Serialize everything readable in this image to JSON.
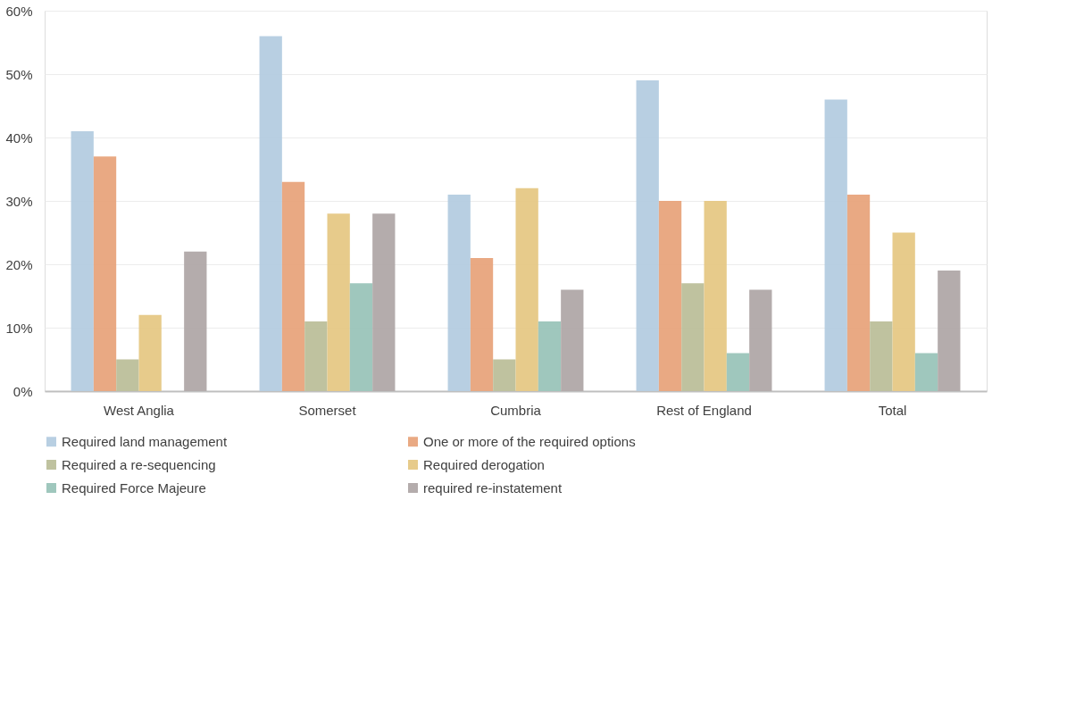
{
  "chart_data": {
    "type": "bar",
    "categories": [
      "West  Anglia",
      "Somerset",
      "Cumbria",
      "Rest  of England",
      "Total"
    ],
    "series": [
      {
        "name": "Required land management",
        "color": "#b4cce0",
        "values": [
          41,
          56,
          31,
          49,
          46
        ]
      },
      {
        "name": "One or more of the required options",
        "color": "#e8a47c",
        "values": [
          37,
          33,
          21,
          30,
          31
        ]
      },
      {
        "name": "Required a re-sequencing",
        "color": "#bcbf9a",
        "values": [
          5,
          11,
          5,
          17,
          11
        ]
      },
      {
        "name": "Required derogation",
        "color": "#e6c885",
        "values": [
          12,
          28,
          32,
          30,
          25
        ]
      },
      {
        "name": "Required Force Majeure",
        "color": "#9ac4b9",
        "values": [
          null,
          17,
          11,
          6,
          6
        ]
      },
      {
        "name": "required re-instatement",
        "color": "#b0a8a8",
        "values": [
          22,
          28,
          16,
          16,
          19
        ]
      }
    ],
    "ylim": [
      0,
      60
    ],
    "yticks": [
      {
        "value": 0,
        "label": "0%"
      },
      {
        "value": 10,
        "label": "10%"
      },
      {
        "value": 20,
        "label": "20%"
      },
      {
        "value": 30,
        "label": "30%"
      },
      {
        "value": 40,
        "label": "40%"
      },
      {
        "value": 50,
        "label": "50%"
      },
      {
        "value": 60,
        "label": "60%"
      }
    ],
    "grid": "y",
    "legend": "bottom"
  }
}
